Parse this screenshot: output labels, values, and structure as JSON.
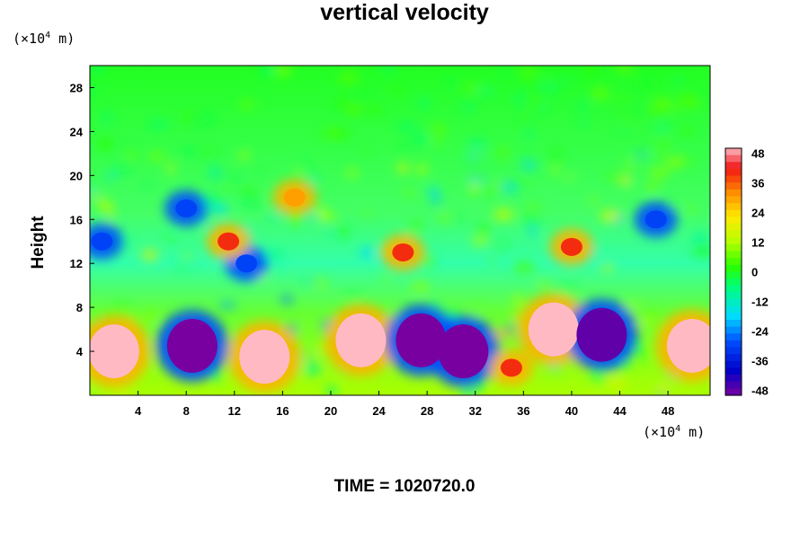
{
  "title": "vertical velocity",
  "footer": {
    "time_label": "TIME = 1020720.0"
  },
  "colors": {
    "background": "#ffffff",
    "green_field": "#00ff00",
    "pink": "#ffb6c1",
    "purple": "#8b00aa"
  },
  "chart_data": {
    "type": "heatmap",
    "title": "vertical velocity",
    "ylabel": "Height",
    "xlabel": "",
    "x_unit": {
      "base": "(×10",
      "exp": "4",
      "suffix": " m)"
    },
    "y_unit": {
      "base": "(×10",
      "exp": "4",
      "suffix": " m)"
    },
    "xlim": [
      0,
      51.5
    ],
    "ylim": [
      0,
      30
    ],
    "x_ticks": [
      4,
      8,
      12,
      16,
      20,
      24,
      28,
      32,
      36,
      40,
      44,
      48
    ],
    "y_ticks": [
      4,
      8,
      12,
      16,
      20,
      24,
      28
    ],
    "colorbar": {
      "range": [
        -50,
        50
      ],
      "ticks": [
        48,
        36,
        24,
        12,
        0,
        -12,
        -24,
        -36,
        -48
      ],
      "colormap": "rainbow (purple = -48 ... pink = 48)"
    },
    "features": [
      {
        "x": 2,
        "y": 4,
        "value": 50
      },
      {
        "x": 8.5,
        "y": 4.5,
        "value": -50
      },
      {
        "x": 14.5,
        "y": 3.5,
        "value": 50
      },
      {
        "x": 22.5,
        "y": 5,
        "value": 50
      },
      {
        "x": 27.5,
        "y": 5,
        "value": -50
      },
      {
        "x": 31,
        "y": 4,
        "value": -50
      },
      {
        "x": 35,
        "y": 2.5,
        "value": 40
      },
      {
        "x": 38.5,
        "y": 6,
        "value": 50
      },
      {
        "x": 42.5,
        "y": 5.5,
        "value": -48
      },
      {
        "x": 50,
        "y": 4.5,
        "value": 50
      },
      {
        "x": 13,
        "y": 12,
        "value": -30
      },
      {
        "x": 1,
        "y": 14,
        "value": -30
      },
      {
        "x": 11.5,
        "y": 14,
        "value": 40
      },
      {
        "x": 26,
        "y": 13,
        "value": 40
      },
      {
        "x": 40,
        "y": 13.5,
        "value": 40
      },
      {
        "x": 47,
        "y": 16,
        "value": -30
      },
      {
        "x": 17,
        "y": 18,
        "value": 30
      },
      {
        "x": 8,
        "y": 17,
        "value": -30
      }
    ]
  }
}
